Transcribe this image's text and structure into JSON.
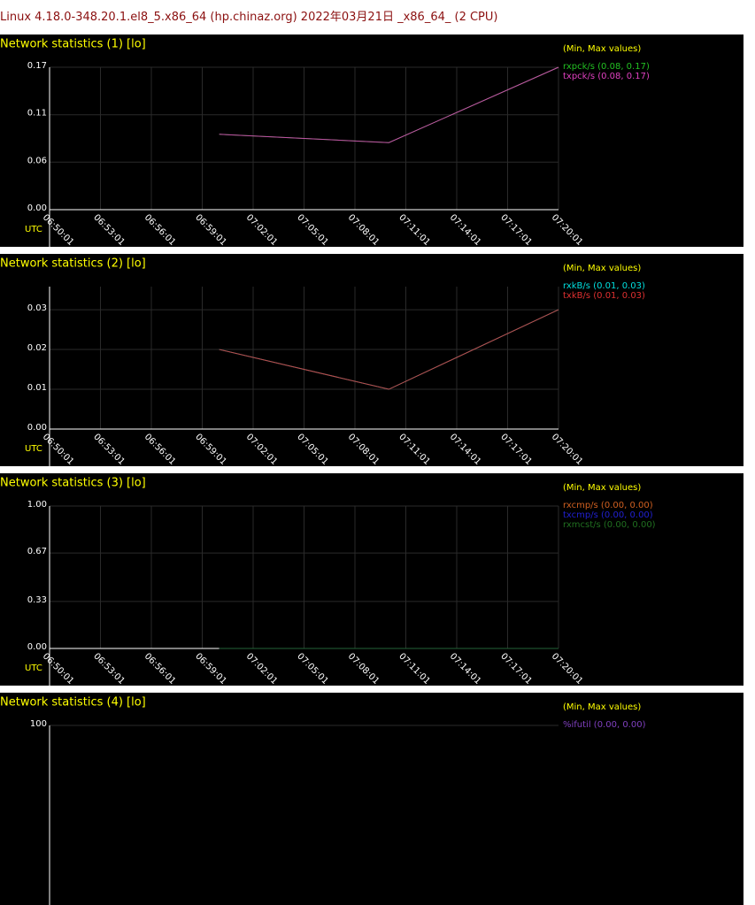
{
  "header": "Linux 4.18.0-348.20.1.el8_5.x86_64 (hp.chinaz.org) 2022年03月21日 _x86_64_ (2 CPU)",
  "chart_data": [
    {
      "type": "line",
      "title": "Network statistics (1) [lo]",
      "legend_title": "(Min, Max values)",
      "x_label": "UTC",
      "grid": true,
      "x": [
        "07:00:01",
        "07:10:01",
        "07:20:01"
      ],
      "xlim": [
        "06:50:01",
        "07:20:01"
      ],
      "xticks": [
        "06:50:01",
        "06:53:01",
        "06:56:01",
        "06:59:01",
        "07:02:01",
        "07:05:01",
        "07:08:01",
        "07:11:01",
        "07:14:01",
        "07:17:01",
        "07:20:01"
      ],
      "ylim": [
        0,
        0.17
      ],
      "yticks": [
        {
          "value": 0,
          "label": "0.00"
        },
        {
          "value": 0.0567,
          "label": "0.06"
        },
        {
          "value": 0.1133,
          "label": "0.11"
        },
        0.17
      ],
      "series": [
        {
          "name": "rxpck/s (0.08, 0.17)",
          "color": "#22c022",
          "values": [
            0.09,
            0.08,
            0.17
          ]
        },
        {
          "name": "txpck/s (0.08, 0.17)",
          "color": "#e040c0",
          "values": [
            0.09,
            0.08,
            0.17
          ]
        }
      ]
    },
    {
      "type": "line",
      "title": "Network statistics (2) [lo]",
      "legend_title": "(Min, Max values)",
      "x_label": "UTC",
      "grid": true,
      "x": [
        "07:00:01",
        "07:10:01",
        "07:20:01"
      ],
      "xlim": [
        "06:50:01",
        "07:20:01"
      ],
      "xticks": [
        "06:50:01",
        "06:53:01",
        "06:56:01",
        "06:59:01",
        "07:02:01",
        "07:05:01",
        "07:08:01",
        "07:11:01",
        "07:14:01",
        "07:17:01",
        "07:20:01"
      ],
      "ylim": [
        0,
        0.0358
      ],
      "yticks": [
        {
          "value": 0,
          "label": "0.00"
        },
        0.01,
        0.02,
        0.03
      ],
      "series": [
        {
          "name": "rxkB/s (0.01, 0.03)",
          "color": "#00e0e0",
          "values": [
            0.02,
            0.01,
            0.03
          ]
        },
        {
          "name": "txkB/s (0.01, 0.03)",
          "color": "#e03030",
          "values": [
            0.02,
            0.01,
            0.03
          ]
        }
      ]
    },
    {
      "type": "line",
      "title": "Network statistics (3) [lo]",
      "legend_title": "(Min, Max values)",
      "x_label": "UTC",
      "grid": true,
      "x": [
        "07:00:01",
        "07:10:01",
        "07:20:01"
      ],
      "xlim": [
        "06:50:01",
        "07:20:01"
      ],
      "xticks": [
        "06:50:01",
        "06:53:01",
        "06:56:01",
        "06:59:01",
        "07:02:01",
        "07:05:01",
        "07:08:01",
        "07:11:01",
        "07:14:01",
        "07:17:01",
        "07:20:01"
      ],
      "ylim": [
        0,
        1
      ],
      "yticks": [
        {
          "value": 0,
          "label": "0.00"
        },
        0.33,
        0.67,
        {
          "value": 1,
          "label": "1.00"
        }
      ],
      "series": [
        {
          "name": "rxcmp/s (0.00, 0.00)",
          "color": "#d06020",
          "values": [
            0,
            0,
            0
          ]
        },
        {
          "name": "txcmp/s (0.00, 0.00)",
          "color": "#2020d0",
          "values": [
            0,
            0,
            0
          ]
        },
        {
          "name": "rxmcst/s (0.00, 0.00)",
          "color": "#207020",
          "values": [
            0,
            0,
            0
          ]
        }
      ]
    },
    {
      "type": "line",
      "title": "Network statistics (4) [lo]",
      "legend_title": "(Min, Max values)",
      "grid": true,
      "ylim": [
        0,
        100
      ],
      "yticks": [
        100
      ],
      "series": [
        {
          "name": "%ifutil (0.00, 0.00)",
          "color": "#8040c0"
        }
      ]
    }
  ]
}
